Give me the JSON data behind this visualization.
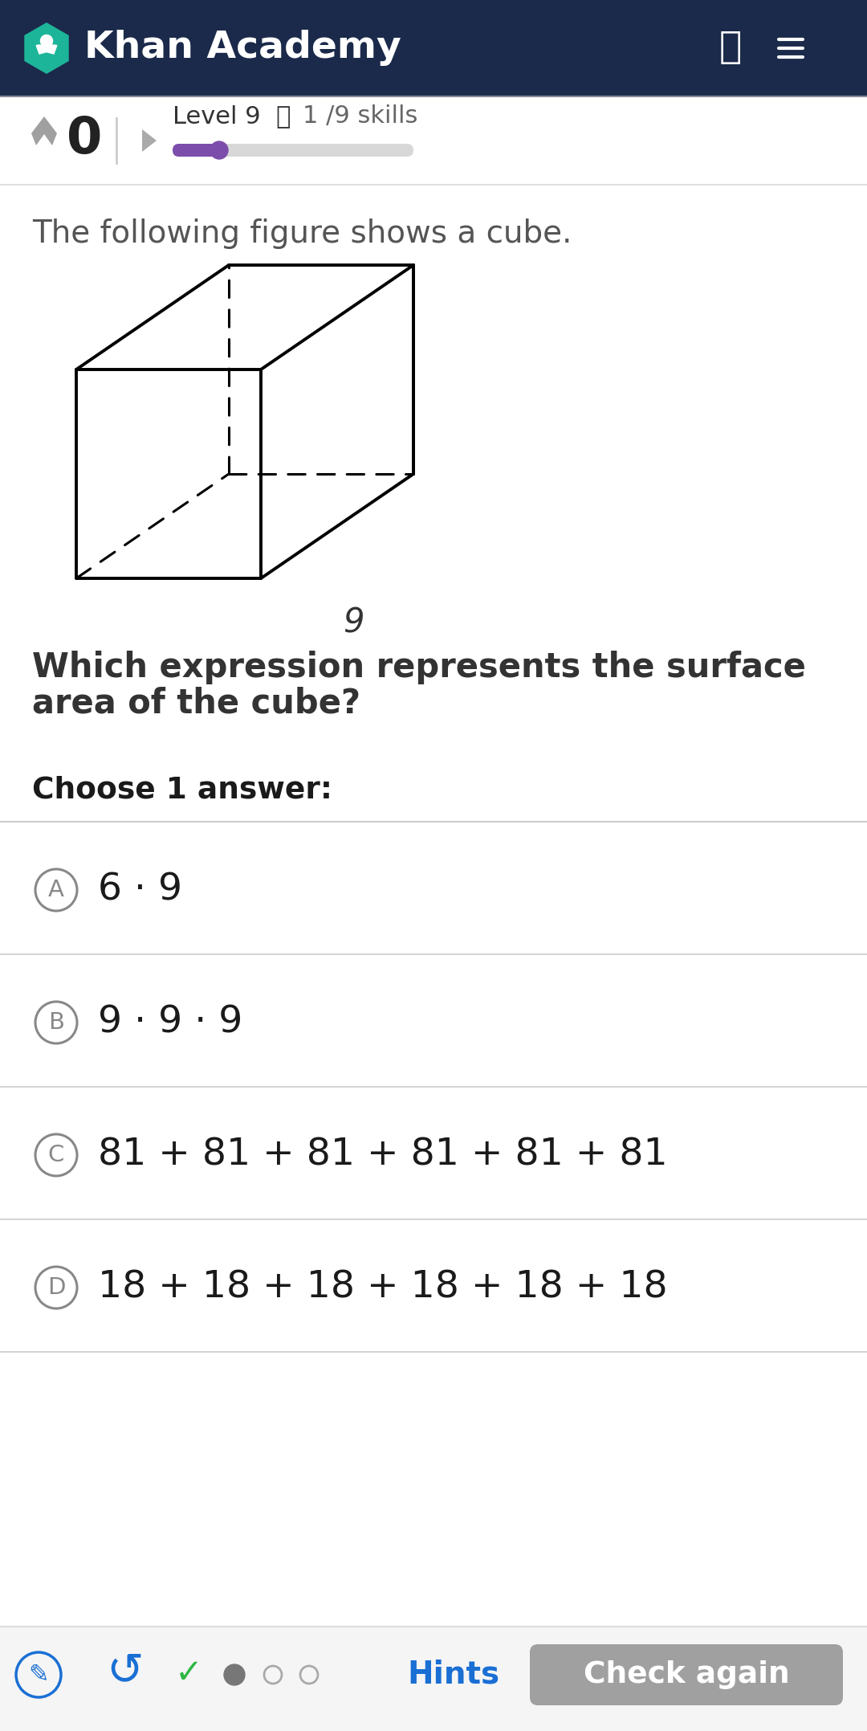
{
  "bg_color": "#ffffff",
  "header_bg": "#1b2a4a",
  "header_text": "Khan Academy",
  "header_text_color": "#ffffff",
  "header_icon_color": "#1db59a",
  "score": "0",
  "level_text": "Level 9",
  "info_symbol": "ⓘ",
  "skills_text": "1 /9 skills",
  "question_text": "The following figure shows a cube.",
  "question2_line1": "Which expression represents the surface",
  "question2_line2": "area of the cube?",
  "choose_text": "Choose 1 answer:",
  "cube_label": "9",
  "answers": [
    {
      "letter": "A",
      "text": "6 · 9"
    },
    {
      "letter": "B",
      "text": "9 · 9 · 9"
    },
    {
      "letter": "C",
      "text": "81 + 81 + 81 + 81 + 81 + 81"
    },
    {
      "letter": "D",
      "text": "18 + 18 + 18 + 18 + 18 + 18"
    }
  ],
  "hints_text": "Hints",
  "check_again_text": "Check again",
  "progress_color": "#7c4dab",
  "progress_bg": "#d8d8d8",
  "answer_circle_color": "#888888",
  "divider_color": "#cccccc",
  "subheader_divider": "#c0c0c0",
  "bottom_bar_bg": "#f5f5f5",
  "bottom_hints_color": "#1a6fd4",
  "bottom_check_bg": "#a0a0a0",
  "bottom_check_text": "#ffffff",
  "question2_color": "#333333",
  "question_text_color": "#555555"
}
